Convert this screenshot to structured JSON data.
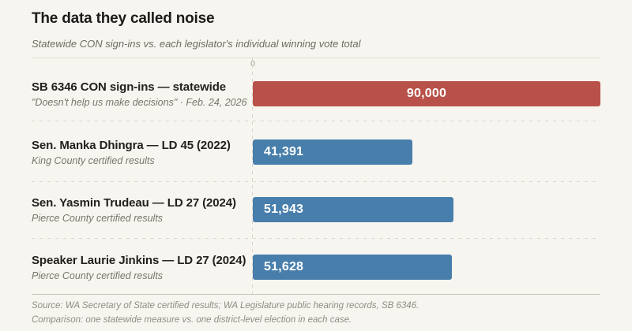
{
  "header": {
    "title": "The data they called noise",
    "subtitle": "Statewide CON sign-ins vs. each legislator's individual winning vote total"
  },
  "axis": {
    "zero_label": "0",
    "max": 90000
  },
  "rows": [
    {
      "label": "SB 6346 CON sign-ins — statewide",
      "sublabel": "\"Doesn't help us make decisions\" · Feb. 24, 2026",
      "value": 90000,
      "value_label": "90,000",
      "color": "#b85149",
      "value_align": "center"
    },
    {
      "label": "Sen. Manka Dhingra — LD 45 (2022)",
      "sublabel": "King County certified results",
      "value": 41391,
      "value_label": "41,391",
      "color": "#487eab",
      "value_align": "left"
    },
    {
      "label": "Sen. Yasmin Trudeau — LD 27 (2024)",
      "sublabel": "Pierce County certified results",
      "value": 51943,
      "value_label": "51,943",
      "color": "#487eab",
      "value_align": "left"
    },
    {
      "label": "Speaker Laurie Jinkins — LD 27 (2024)",
      "sublabel": "Pierce County certified results",
      "value": 51628,
      "value_label": "51,628",
      "color": "#487eab",
      "value_align": "left"
    }
  ],
  "footer": {
    "source": "Source: WA Secretary of State certified results; WA Legislature public hearing records, SB 6346.",
    "comparison": "Comparison: one statewide measure vs. one district-level election in each case."
  },
  "colors": {
    "background": "#f7f5f0",
    "con_bar_red": "#b85149",
    "legislator_bar_blue": "#487eab"
  },
  "chart_data": {
    "type": "bar",
    "orientation": "horizontal",
    "title": "The data they called noise",
    "subtitle": "Statewide CON sign-ins vs. each legislator's individual winning vote total",
    "categories": [
      "SB 6346 CON sign-ins — statewide",
      "Sen. Manka Dhingra — LD 45 (2022)",
      "Sen. Yasmin Trudeau — LD 27 (2024)",
      "Speaker Laurie Jinkins — LD 27 (2024)"
    ],
    "category_notes": [
      "\"Doesn't help us make decisions\" · Feb. 24, 2026",
      "King County certified results",
      "Pierce County certified results",
      "Pierce County certified results"
    ],
    "values": [
      90000,
      41391,
      51943,
      51628
    ],
    "value_labels": [
      "90,000",
      "41,391",
      "51,943",
      "51,628"
    ],
    "bar_colors": [
      "#b85149",
      "#487eab",
      "#487eab",
      "#487eab"
    ],
    "xlim": [
      0,
      90000
    ],
    "x_tick_labels": [
      "0"
    ],
    "grid": "dashed zero line and dashed row separators",
    "legend": "none",
    "annotations": [
      "Source: WA Secretary of State certified results; WA Legislature public hearing records, SB 6346.",
      "Comparison: one statewide measure vs. one district-level election in each case."
    ]
  }
}
